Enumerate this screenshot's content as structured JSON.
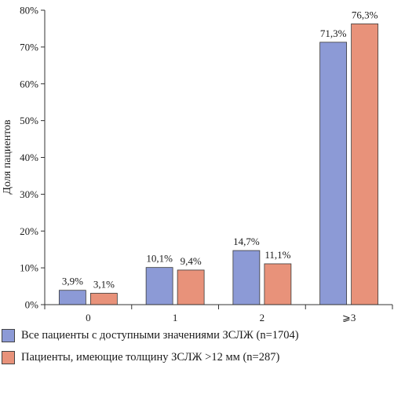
{
  "chart_data": {
    "type": "bar",
    "categories": [
      "0",
      "1",
      "2",
      "⩾3"
    ],
    "series": [
      {
        "name": "Все пациенты с доступными значениями ЗСЛЖ (n=1704)",
        "values": [
          3.9,
          10.1,
          14.7,
          71.3
        ],
        "labels": [
          "3,9%",
          "10,1%",
          "14,7%",
          "71,3%"
        ],
        "color": "#8c9ad6"
      },
      {
        "name": "Пациенты, имеющие толщину ЗСЛЖ >12 мм (n=287)",
        "values": [
          3.1,
          9.4,
          11.1,
          76.3
        ],
        "labels": [
          "3,1%",
          "9,4%",
          "11,1%",
          "76,3%"
        ],
        "color": "#e8927a"
      }
    ],
    "ylabel": "Доля пациентов",
    "xlabel": "",
    "ylim": [
      0,
      80
    ],
    "yticks": [
      0,
      10,
      20,
      30,
      40,
      50,
      60,
      70,
      80
    ],
    "ytick_labels": [
      "0%",
      "10%",
      "20%",
      "30%",
      "40%",
      "50%",
      "60%",
      "70%",
      "80%"
    ],
    "grid": false,
    "legend_position": "bottom-left"
  }
}
